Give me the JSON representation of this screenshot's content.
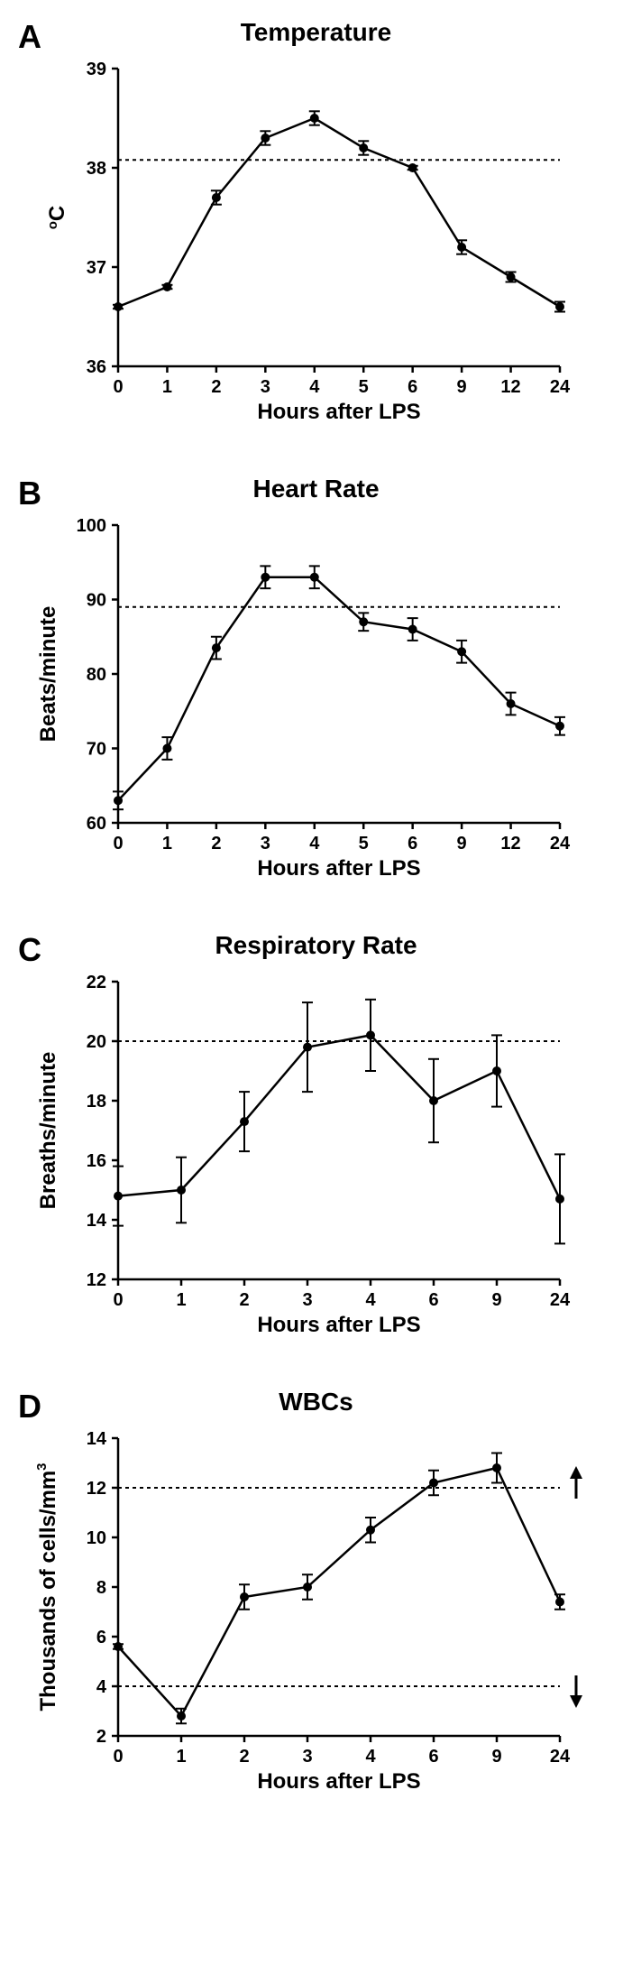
{
  "global": {
    "xlabel": "Hours after  LPS",
    "color_line": "#000000",
    "color_marker": "#000000",
    "color_axis": "#000000",
    "color_threshold": "#000000",
    "background": "#ffffff",
    "marker_style": "circle",
    "marker_size": 5,
    "line_width": 2.5,
    "axis_width": 2.5,
    "tick_length": 7,
    "tick_width": 2.5,
    "dash_pattern": "4 4",
    "title_fontsize": 28,
    "label_fontsize": 24,
    "tick_fontsize": 20,
    "panel_label_fontsize": 36
  },
  "panels": [
    {
      "id": "A",
      "title": "Temperature",
      "ylabel": "°C",
      "ylabel_html": "<tspan>o</tspan>C",
      "threshold": [
        38.08
      ],
      "x_categories": [
        0,
        1,
        2,
        3,
        4,
        5,
        6,
        9,
        12,
        24
      ],
      "yticks": [
        36,
        37,
        38,
        39
      ],
      "ylim": [
        36,
        39
      ],
      "series": [
        {
          "x": 0,
          "y": 36.6,
          "err": 0.02
        },
        {
          "x": 1,
          "y": 36.8,
          "err": 0.02
        },
        {
          "x": 2,
          "y": 37.7,
          "err": 0.07
        },
        {
          "x": 3,
          "y": 38.3,
          "err": 0.07
        },
        {
          "x": 4,
          "y": 38.5,
          "err": 0.07
        },
        {
          "x": 5,
          "y": 38.2,
          "err": 0.07
        },
        {
          "x": 6,
          "y": 38.0,
          "err": 0.02
        },
        {
          "x": 9,
          "y": 37.2,
          "err": 0.07
        },
        {
          "x": 12,
          "y": 36.9,
          "err": 0.05
        },
        {
          "x": 24,
          "y": 36.6,
          "err": 0.05
        }
      ]
    },
    {
      "id": "B",
      "title": "Heart Rate",
      "ylabel": "Beats/minute",
      "threshold": [
        89
      ],
      "x_categories": [
        0,
        1,
        2,
        3,
        4,
        5,
        6,
        9,
        12,
        24
      ],
      "yticks": [
        60,
        70,
        80,
        90,
        100
      ],
      "ylim": [
        60,
        100
      ],
      "series": [
        {
          "x": 0,
          "y": 63,
          "err": 1.2
        },
        {
          "x": 1,
          "y": 70,
          "err": 1.5
        },
        {
          "x": 2,
          "y": 83.5,
          "err": 1.5
        },
        {
          "x": 3,
          "y": 93,
          "err": 1.5
        },
        {
          "x": 4,
          "y": 93,
          "err": 1.5
        },
        {
          "x": 5,
          "y": 87,
          "err": 1.2
        },
        {
          "x": 6,
          "y": 86,
          "err": 1.5
        },
        {
          "x": 9,
          "y": 83,
          "err": 1.5
        },
        {
          "x": 12,
          "y": 76,
          "err": 1.5
        },
        {
          "x": 24,
          "y": 73,
          "err": 1.2
        }
      ]
    },
    {
      "id": "C",
      "title": "Respiratory Rate",
      "ylabel": "Breaths/minute",
      "threshold": [
        20
      ],
      "x_categories": [
        0,
        1,
        2,
        3,
        4,
        6,
        9,
        24
      ],
      "yticks": [
        12,
        14,
        16,
        18,
        20,
        22
      ],
      "ylim": [
        12,
        22
      ],
      "series": [
        {
          "x": 0,
          "y": 14.8,
          "err": 1.0
        },
        {
          "x": 1,
          "y": 15.0,
          "err": 1.1
        },
        {
          "x": 2,
          "y": 17.3,
          "err": 1.0
        },
        {
          "x": 3,
          "y": 19.8,
          "err": 1.5
        },
        {
          "x": 4,
          "y": 20.2,
          "err": 1.2
        },
        {
          "x": 6,
          "y": 18.0,
          "err": 1.4
        },
        {
          "x": 9,
          "y": 19.0,
          "err": 1.2
        },
        {
          "x": 24,
          "y": 14.7,
          "err": 1.5
        }
      ]
    },
    {
      "id": "D",
      "title": "WBCs",
      "ylabel": "Thousands of cells/mm",
      "ylabel_sup": "3",
      "threshold": [
        4,
        12
      ],
      "threshold_arrows": true,
      "x_categories": [
        0,
        1,
        2,
        3,
        4,
        6,
        9,
        24
      ],
      "yticks": [
        2,
        4,
        6,
        8,
        10,
        12,
        14
      ],
      "ylim": [
        2,
        14
      ],
      "series": [
        {
          "x": 0,
          "y": 5.6,
          "err": 0.1
        },
        {
          "x": 1,
          "y": 2.8,
          "err": 0.3
        },
        {
          "x": 2,
          "y": 7.6,
          "err": 0.5
        },
        {
          "x": 3,
          "y": 8.0,
          "err": 0.5
        },
        {
          "x": 4,
          "y": 10.3,
          "err": 0.5
        },
        {
          "x": 6,
          "y": 12.2,
          "err": 0.5
        },
        {
          "x": 9,
          "y": 12.8,
          "err": 0.6
        },
        {
          "x": 24,
          "y": 7.4,
          "err": 0.3
        }
      ]
    }
  ]
}
